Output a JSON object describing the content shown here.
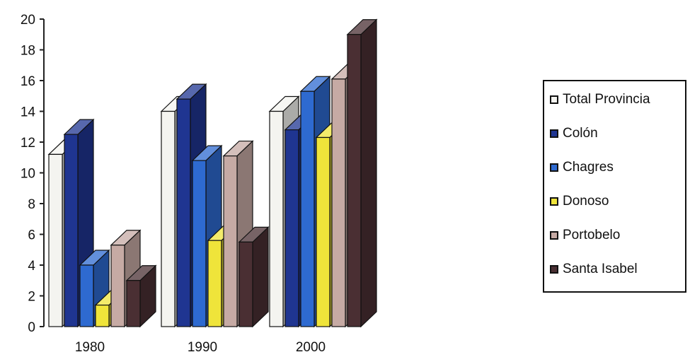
{
  "chart_data": {
    "type": "bar",
    "categories": [
      "1980",
      "1990",
      "2000"
    ],
    "ylim": [
      0,
      20
    ],
    "yticks": [
      0,
      2,
      4,
      6,
      8,
      10,
      12,
      14,
      16,
      18,
      20
    ],
    "style": "3d-clustered-column",
    "legend_position": "right",
    "series": [
      {
        "name": "Total Provincia",
        "color": "#f4f4f0",
        "values": [
          11.2,
          14.0,
          14.0
        ]
      },
      {
        "name": "Colón",
        "color": "#1f3591",
        "values": [
          12.5,
          14.8,
          12.8
        ]
      },
      {
        "name": "Chagres",
        "color": "#2e6ad0",
        "values": [
          4.0,
          10.8,
          15.3
        ]
      },
      {
        "name": "Donoso",
        "color": "#efe43a",
        "values": [
          1.4,
          5.6,
          12.3
        ]
      },
      {
        "name": "Portobelo",
        "color": "#c6aaa4",
        "values": [
          5.3,
          11.1,
          16.1
        ]
      },
      {
        "name": "Santa Isabel",
        "color": "#4a2f33",
        "values": [
          3.0,
          5.5,
          19.0
        ]
      }
    ]
  }
}
